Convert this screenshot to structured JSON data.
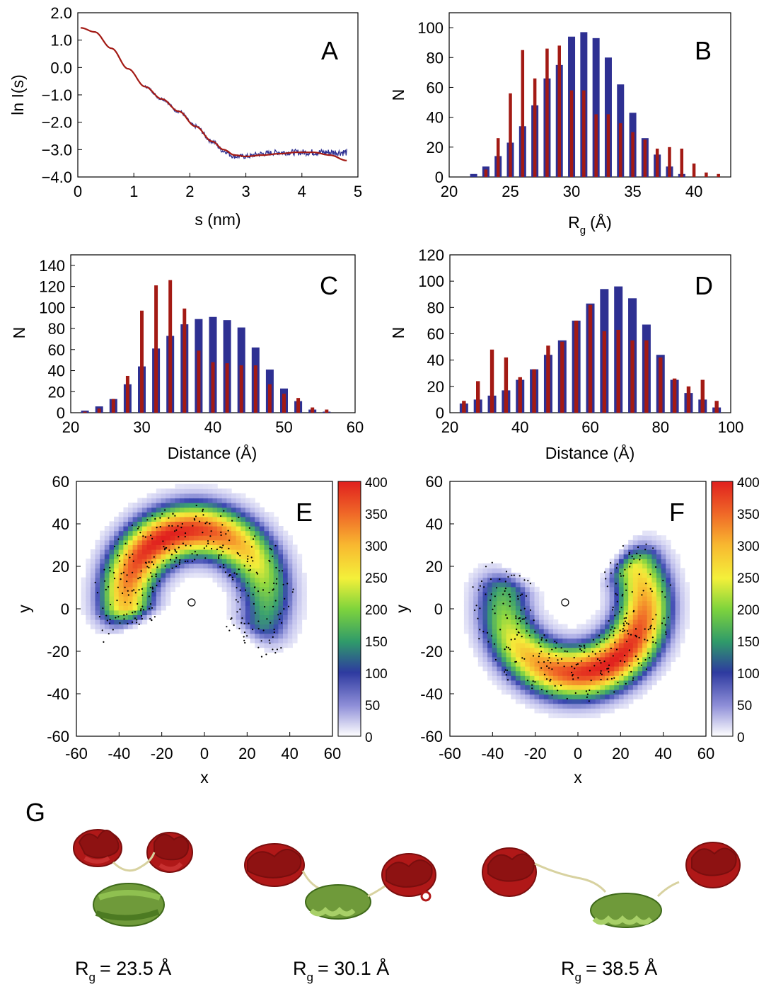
{
  "panels": {
    "a": {
      "label": "A"
    },
    "b": {
      "label": "B"
    },
    "c": {
      "label": "C"
    },
    "d": {
      "label": "D"
    },
    "e": {
      "label": "E"
    },
    "f": {
      "label": "F"
    },
    "g": {
      "label": "G"
    }
  },
  "colors": {
    "red": "#a31a14",
    "blue": "#2e3092",
    "helix_red": "#b01818",
    "helix_green": "#6f9a3a",
    "linker": "#d8d2a0"
  },
  "structures": [
    {
      "rg_prefix": "R",
      "rg_sub": "g",
      "rg_value": "= 23.5 Å"
    },
    {
      "rg_prefix": "R",
      "rg_sub": "g",
      "rg_value": "= 30.1 Å"
    },
    {
      "rg_prefix": "R",
      "rg_sub": "g",
      "rg_value": "= 38.5 Å"
    }
  ],
  "chart_data": [
    {
      "id": "A",
      "type": "line",
      "xlabel": "s (nm)",
      "ylabel": "ln I(s)",
      "xlim": [
        0,
        5
      ],
      "ylim": [
        -4.0,
        2.0
      ],
      "xticks": [
        "0",
        "1",
        "2",
        "3",
        "4",
        "5"
      ],
      "yticks": [
        "2.0",
        "1.0",
        "0.0",
        "−1.0",
        "−2.0",
        "−3.0",
        "−4.0"
      ],
      "series": [
        {
          "color": "blue",
          "style": "noisy",
          "x": [
            0.05,
            0.3,
            0.6,
            0.9,
            1.2,
            1.5,
            1.8,
            2.1,
            2.4,
            2.6,
            2.8,
            3.0,
            3.3,
            3.6,
            3.9,
            4.2,
            4.5,
            4.8
          ],
          "y": [
            1.45,
            1.3,
            0.7,
            -0.05,
            -0.7,
            -1.15,
            -1.6,
            -2.15,
            -2.7,
            -3.05,
            -3.25,
            -3.25,
            -3.15,
            -3.1,
            -3.1,
            -3.1,
            -3.1,
            -3.1
          ]
        },
        {
          "color": "red",
          "style": "smooth",
          "x": [
            0.05,
            0.3,
            0.6,
            0.9,
            1.2,
            1.5,
            1.8,
            2.1,
            2.4,
            2.6,
            2.8,
            3.0,
            3.3,
            3.6,
            3.9,
            4.2,
            4.5,
            4.8
          ],
          "y": [
            1.45,
            1.3,
            0.7,
            -0.05,
            -0.7,
            -1.15,
            -1.6,
            -2.15,
            -2.7,
            -3.0,
            -3.2,
            -3.25,
            -3.2,
            -3.15,
            -3.1,
            -3.1,
            -3.2,
            -3.4
          ]
        }
      ]
    },
    {
      "id": "B",
      "type": "bar",
      "xlabel_main": "R",
      "xlabel_sub": "g",
      "xlabel_unit": "(Å)",
      "ylabel": "N",
      "xlim": [
        20,
        43
      ],
      "ylim": [
        0,
        110
      ],
      "xticks": [
        "20",
        "25",
        "30",
        "35",
        "40"
      ],
      "yticks": [
        "0",
        "20",
        "40",
        "60",
        "80",
        "100"
      ],
      "x": [
        21,
        22,
        23,
        24,
        25,
        26,
        27,
        28,
        29,
        30,
        31,
        32,
        33,
        34,
        35,
        36,
        37,
        38,
        39,
        40,
        41,
        42
      ],
      "series": [
        {
          "color": "blue",
          "values": [
            0,
            2,
            7,
            14,
            23,
            34,
            48,
            66,
            75,
            94,
            97,
            93,
            80,
            62,
            43,
            26,
            15,
            7,
            2,
            0,
            0,
            0
          ]
        },
        {
          "color": "red",
          "values": [
            0,
            0,
            5,
            26,
            56,
            85,
            66,
            86,
            88,
            58,
            58,
            42,
            42,
            36,
            30,
            25,
            19,
            20,
            19,
            9,
            3,
            2
          ]
        }
      ]
    },
    {
      "id": "C",
      "type": "bar",
      "xlabel": "Distance (Å)",
      "ylabel": "N",
      "xlim": [
        20,
        60
      ],
      "ylim": [
        0,
        150
      ],
      "xticks": [
        "20",
        "30",
        "40",
        "50",
        "60"
      ],
      "yticks": [
        "0",
        "20",
        "40",
        "60",
        "80",
        "100",
        "120",
        "140"
      ],
      "x": [
        22,
        24,
        26,
        28,
        30,
        32,
        34,
        36,
        38,
        40,
        42,
        44,
        46,
        48,
        50,
        52,
        54,
        56
      ],
      "series": [
        {
          "color": "blue",
          "values": [
            2,
            6,
            13,
            27,
            44,
            61,
            73,
            84,
            89,
            91,
            88,
            81,
            62,
            41,
            23,
            11,
            3,
            1
          ]
        },
        {
          "color": "red",
          "values": [
            1,
            4,
            13,
            35,
            97,
            121,
            126,
            99,
            59,
            48,
            47,
            45,
            45,
            27,
            18,
            14,
            5,
            3
          ]
        }
      ]
    },
    {
      "id": "D",
      "type": "bar",
      "xlabel": "Distance (Å)",
      "ylabel": "N",
      "xlim": [
        20,
        100
      ],
      "ylim": [
        0,
        120
      ],
      "xticks": [
        "20",
        "40",
        "60",
        "80",
        "100"
      ],
      "yticks": [
        "0",
        "20",
        "40",
        "60",
        "80",
        "100",
        "120"
      ],
      "x": [
        24,
        28,
        32,
        36,
        40,
        44,
        48,
        52,
        56,
        60,
        64,
        68,
        72,
        76,
        80,
        84,
        88,
        92,
        96
      ],
      "series": [
        {
          "color": "blue",
          "values": [
            7,
            10,
            13,
            17,
            25,
            33,
            44,
            55,
            70,
            83,
            94,
            96,
            87,
            67,
            44,
            25,
            15,
            10,
            4
          ]
        },
        {
          "color": "red",
          "values": [
            9,
            24,
            48,
            42,
            27,
            33,
            51,
            54,
            70,
            82,
            62,
            63,
            55,
            55,
            42,
            26,
            20,
            25,
            9
          ]
        }
      ]
    },
    {
      "id": "E",
      "type": "heatmap",
      "xlabel": "x",
      "ylabel": "y",
      "xlim": [
        -60,
        60
      ],
      "ylim": [
        -60,
        60
      ],
      "xticks": [
        "-60",
        "-40",
        "-20",
        "0",
        "20",
        "40",
        "60"
      ],
      "yticks": [
        "60",
        "40",
        "20",
        "0",
        "-20",
        "-40",
        "-60"
      ],
      "colorbar": {
        "min": 0,
        "max": 400,
        "ticks": [
          "400",
          "350",
          "300",
          "250",
          "200",
          "150",
          "100",
          "50",
          "0"
        ]
      },
      "arc": {
        "center": [
          -5,
          3
        ],
        "radius": 33,
        "width": 22,
        "start_deg": -40,
        "end_deg": 205,
        "peak_deg": 115
      },
      "marker": {
        "x": -6,
        "y": 3
      }
    },
    {
      "id": "F",
      "type": "heatmap",
      "xlabel": "x",
      "ylabel": "y",
      "xlim": [
        -60,
        60
      ],
      "ylim": [
        -60,
        60
      ],
      "xticks": [
        "-60",
        "-40",
        "-20",
        "0",
        "20",
        "40",
        "60"
      ],
      "yticks": [
        "60",
        "40",
        "20",
        "0",
        "-20",
        "-40",
        "-60"
      ],
      "colorbar": {
        "min": 0,
        "max": 400,
        "ticks": [
          "400",
          "350",
          "300",
          "250",
          "200",
          "150",
          "100",
          "50",
          "0"
        ]
      },
      "arc": {
        "center": [
          -3,
          2
        ],
        "radius": 33,
        "width": 22,
        "start_deg": 150,
        "end_deg": 410,
        "peak_deg": 300
      },
      "marker": {
        "x": -6,
        "y": 3
      }
    }
  ]
}
